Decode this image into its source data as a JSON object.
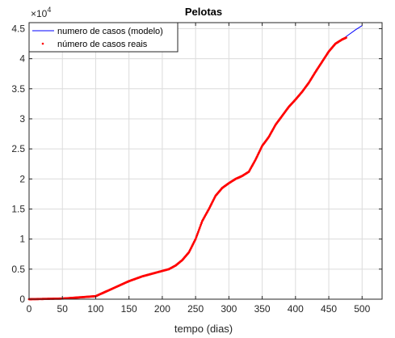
{
  "chart_data": {
    "type": "line",
    "title": "Pelotas",
    "xlabel": "tempo (dias)",
    "ylabel": "",
    "y_multiplier_label": "×10",
    "y_multiplier_exponent": "4",
    "xlim": [
      0,
      530
    ],
    "ylim": [
      0,
      4.6
    ],
    "xticks": [
      0,
      50,
      100,
      150,
      200,
      250,
      300,
      350,
      400,
      450,
      500
    ],
    "yticks": [
      0,
      0.5,
      1,
      1.5,
      2,
      2.5,
      3,
      3.5,
      4,
      4.5
    ],
    "xtick_labels": [
      "0",
      "50",
      "100",
      "150",
      "200",
      "250",
      "300",
      "350",
      "400",
      "450",
      "500"
    ],
    "ytick_labels": [
      "0",
      "0.5",
      "1",
      "1.5",
      "2",
      "2.5",
      "3",
      "3.5",
      "4",
      "4.5"
    ],
    "grid": true,
    "legend_position": "top-left",
    "series": [
      {
        "name": "numero de casos (modelo)",
        "style": "line",
        "color": "#0000ff",
        "x": [
          0,
          50,
          100,
          110,
          130,
          150,
          170,
          190,
          200,
          210,
          220,
          230,
          240,
          250,
          260,
          270,
          280,
          290,
          300,
          310,
          320,
          330,
          340,
          350,
          360,
          370,
          380,
          390,
          400,
          410,
          420,
          430,
          440,
          450,
          460,
          470,
          480,
          490,
          500
        ],
        "y": [
          0,
          0.01,
          0.05,
          0.1,
          0.2,
          0.3,
          0.38,
          0.44,
          0.47,
          0.5,
          0.56,
          0.65,
          0.78,
          1.0,
          1.3,
          1.5,
          1.72,
          1.85,
          1.93,
          2.0,
          2.05,
          2.12,
          2.32,
          2.55,
          2.7,
          2.9,
          3.05,
          3.2,
          3.32,
          3.45,
          3.6,
          3.78,
          3.95,
          4.12,
          4.25,
          4.32,
          4.4,
          4.48,
          4.55
        ]
      },
      {
        "name": "número de casos reais",
        "style": "markers",
        "color": "#ff0000",
        "x": [
          0,
          50,
          100,
          110,
          130,
          150,
          170,
          190,
          200,
          210,
          220,
          230,
          240,
          250,
          260,
          270,
          280,
          290,
          300,
          310,
          320,
          330,
          340,
          350,
          360,
          370,
          380,
          390,
          400,
          410,
          420,
          430,
          440,
          450,
          460,
          470,
          476
        ],
        "y": [
          0,
          0.01,
          0.05,
          0.1,
          0.2,
          0.3,
          0.38,
          0.44,
          0.47,
          0.5,
          0.56,
          0.65,
          0.78,
          1.0,
          1.3,
          1.5,
          1.72,
          1.85,
          1.93,
          2.0,
          2.05,
          2.12,
          2.32,
          2.55,
          2.7,
          2.9,
          3.05,
          3.2,
          3.32,
          3.45,
          3.6,
          3.78,
          3.95,
          4.12,
          4.25,
          4.32,
          4.35
        ]
      }
    ]
  }
}
